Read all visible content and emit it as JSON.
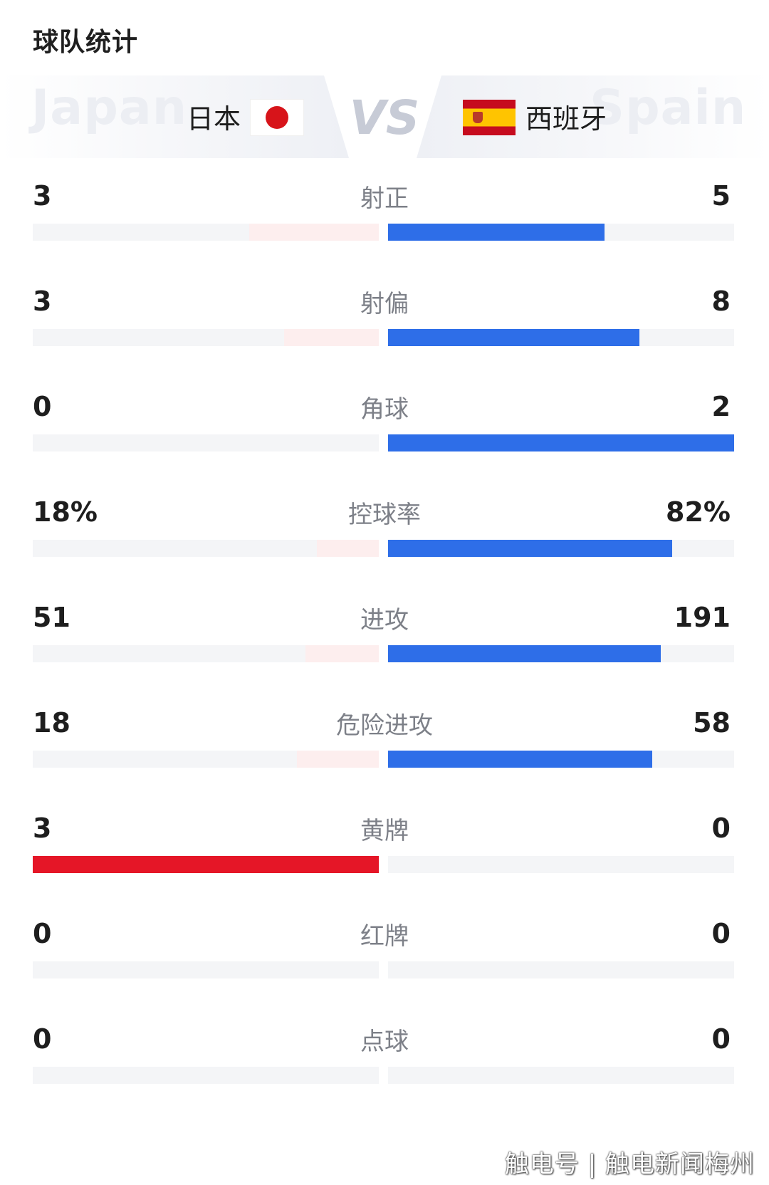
{
  "section_title": "球队统计",
  "header": {
    "home": {
      "ghost_name": "Japan",
      "name": "日本",
      "flag_icon": "japan-flag-icon"
    },
    "away": {
      "ghost_name": "Spain",
      "name": "西班牙",
      "flag_icon": "spain-flag-icon"
    },
    "vs_label": "VS"
  },
  "colors": {
    "away_bar": "#2e6ee8",
    "home_bar_tint": "#fdeeee",
    "home_bar_leading": "#e51627",
    "track": "#f4f5f7"
  },
  "stats": [
    {
      "label": "射正",
      "home": "3",
      "away": "5",
      "home_ratio": 0.375,
      "away_ratio": 0.625,
      "home_leads": false
    },
    {
      "label": "射偏",
      "home": "3",
      "away": "8",
      "home_ratio": 0.273,
      "away_ratio": 0.727,
      "home_leads": false
    },
    {
      "label": "角球",
      "home": "0",
      "away": "2",
      "home_ratio": 0,
      "away_ratio": 1,
      "home_leads": false
    },
    {
      "label": "控球率",
      "home": "18%",
      "away": "82%",
      "home_ratio": 0.18,
      "away_ratio": 0.82,
      "home_leads": false
    },
    {
      "label": "进攻",
      "home": "51",
      "away": "191",
      "home_ratio": 0.211,
      "away_ratio": 0.789,
      "home_leads": false
    },
    {
      "label": "危险进攻",
      "home": "18",
      "away": "58",
      "home_ratio": 0.237,
      "away_ratio": 0.763,
      "home_leads": false
    },
    {
      "label": "黄牌",
      "home": "3",
      "away": "0",
      "home_ratio": 1,
      "away_ratio": 0,
      "home_leads": true
    },
    {
      "label": "红牌",
      "home": "0",
      "away": "0",
      "home_ratio": 0,
      "away_ratio": 0,
      "home_leads": false
    },
    {
      "label": "点球",
      "home": "0",
      "away": "0",
      "home_ratio": 0,
      "away_ratio": 0,
      "home_leads": false
    }
  ],
  "watermark": "触电号 | 触电新闻梅州"
}
